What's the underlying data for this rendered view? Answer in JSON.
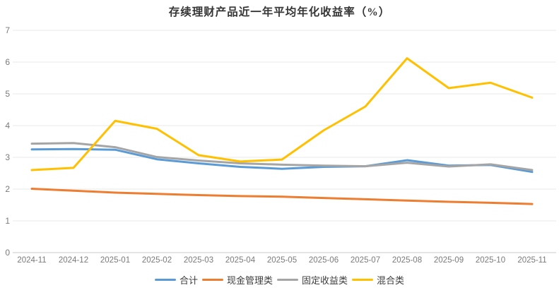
{
  "title": "存续理财产品近一年平均年化收益率（%）",
  "colors": {
    "grid": "#e9e9e9",
    "axis": "#c8c8c8",
    "tick_text": "#7a7a7a"
  },
  "chart_data": {
    "type": "line",
    "title": "存续理财产品近一年平均年化收益率（%）",
    "x": [
      "2024-11",
      "2024-12",
      "2025-01",
      "2025-02",
      "2025-03",
      "2025-04",
      "2025-05",
      "2025-06",
      "2025-07",
      "2025-08",
      "2025-09",
      "2025-10",
      "2025-11"
    ],
    "series": [
      {
        "name": "合计",
        "color": "#5B9BD5",
        "values": [
          3.25,
          3.26,
          3.24,
          2.94,
          2.81,
          2.7,
          2.64,
          2.7,
          2.72,
          2.91,
          2.74,
          2.76,
          2.54
        ]
      },
      {
        "name": "现金管理类",
        "color": "#ED7D31",
        "values": [
          2.01,
          1.95,
          1.89,
          1.85,
          1.81,
          1.78,
          1.76,
          1.72,
          1.68,
          1.64,
          1.6,
          1.57,
          1.53
        ]
      },
      {
        "name": "固定收益类",
        "color": "#A5A5A5",
        "values": [
          3.43,
          3.45,
          3.32,
          3.01,
          2.9,
          2.81,
          2.77,
          2.74,
          2.72,
          2.83,
          2.71,
          2.78,
          2.6
        ]
      },
      {
        "name": "混合类",
        "color": "#FFC000",
        "values": [
          2.6,
          2.67,
          4.15,
          3.9,
          3.07,
          2.87,
          2.93,
          3.85,
          4.6,
          6.12,
          5.18,
          5.35,
          4.88
        ]
      }
    ],
    "ylim": [
      0,
      7
    ],
    "yticks": [
      0,
      1,
      2,
      3,
      4,
      5,
      6,
      7
    ],
    "xlabel": "",
    "ylabel": "",
    "grid": true,
    "legend_position": "bottom"
  }
}
